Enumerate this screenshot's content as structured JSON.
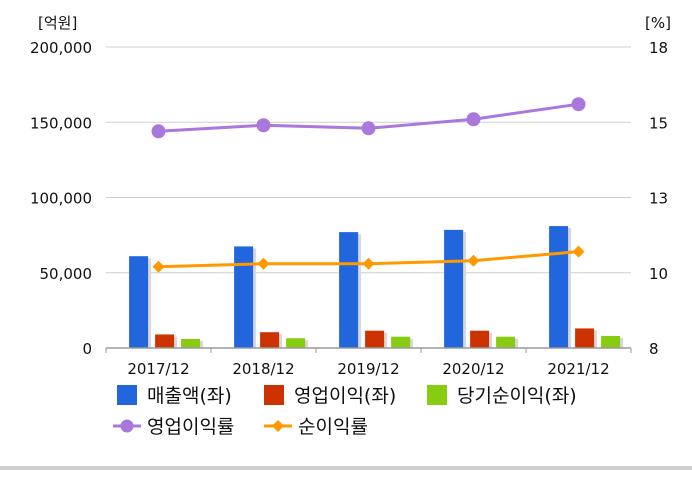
{
  "chart_data": {
    "type": "bar",
    "categories": [
      "2017/12",
      "2018/12",
      "2019/12",
      "2020/12",
      "2021/12"
    ],
    "y_left": {
      "unit": "[억원]",
      "ylim": [
        0,
        200000
      ],
      "ticks": [
        "0",
        "50,000",
        "100,000",
        "150,000",
        "200,000"
      ]
    },
    "y_right": {
      "unit": "[%]",
      "ylim": [
        8,
        18
      ],
      "ticks": [
        "8",
        "10",
        "13",
        "15",
        "18"
      ]
    },
    "bar_series": [
      {
        "name": "매출액(좌)",
        "color": "#2266dd",
        "values": [
          61000,
          67500,
          77000,
          78500,
          81000
        ]
      },
      {
        "name": "영업이익(좌)",
        "color": "#cc3300",
        "values": [
          9000,
          10500,
          11500,
          11500,
          13000
        ]
      },
      {
        "name": "당기순이익(좌)",
        "color": "#88cc11",
        "values": [
          6000,
          6500,
          7500,
          7500,
          8000
        ]
      }
    ],
    "line_series": [
      {
        "name": "영업이익률",
        "color": "#aa77dd",
        "marker": "circle",
        "axis": "right",
        "values": [
          15.2,
          15.4,
          15.3,
          15.6,
          16.1
        ]
      },
      {
        "name": "순이익률",
        "color": "#ff9900",
        "marker": "diamond",
        "axis": "right",
        "values": [
          10.7,
          10.8,
          10.8,
          10.9,
          11.2
        ]
      }
    ],
    "legend_position": "bottom",
    "grid": "horizontal"
  }
}
